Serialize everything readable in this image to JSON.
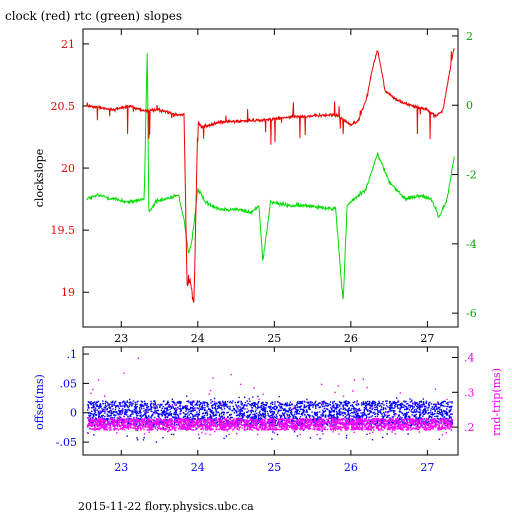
{
  "page_title": "clock (red) rtc (green) slopes",
  "footer": "2015-11-22 flory.physics.ubc.ca",
  "colors": {
    "clock": "#ee0000",
    "rtc": "#00dd00",
    "offset": "#0000ff",
    "rndtrip": "#ff00ff",
    "axis": "#000000"
  },
  "chart_data": [
    {
      "type": "line",
      "title": "clock (red) rtc (green) slopes",
      "xlabel": "",
      "ylabel": "clockslope",
      "y2label": "",
      "xlim": [
        22.5,
        27.4
      ],
      "ylim": [
        18.72,
        21.12
      ],
      "y2lim": [
        -6.4,
        2.2
      ],
      "xticks": [
        23,
        24,
        25,
        26,
        27
      ],
      "yticks": [
        19,
        19.5,
        20,
        20.5,
        21
      ],
      "y2ticks": [
        -6,
        -4,
        -2,
        0,
        2
      ],
      "grid": false,
      "series": [
        {
          "name": "clock",
          "axis": "left",
          "x": [
            22.55,
            22.7,
            22.9,
            23.1,
            23.3,
            23.5,
            23.7,
            23.82,
            23.86,
            23.9,
            23.95,
            24.0,
            24.05,
            24.3,
            24.6,
            24.9,
            25.2,
            25.5,
            25.8,
            26.0,
            26.1,
            26.2,
            26.3,
            26.35,
            26.45,
            26.6,
            26.8,
            27.0,
            27.1,
            27.2,
            27.3,
            27.35
          ],
          "y": [
            20.5,
            20.49,
            20.47,
            20.5,
            20.46,
            20.47,
            20.43,
            20.43,
            19.05,
            19.1,
            18.9,
            20.38,
            20.33,
            20.37,
            20.38,
            20.39,
            20.41,
            20.42,
            20.43,
            20.35,
            20.38,
            20.55,
            20.85,
            20.95,
            20.62,
            20.55,
            20.5,
            20.47,
            20.42,
            20.46,
            20.8,
            20.97
          ]
        },
        {
          "name": "rtc",
          "axis": "right",
          "x": [
            22.55,
            22.7,
            22.9,
            23.1,
            23.3,
            23.34,
            23.36,
            23.45,
            23.6,
            23.75,
            23.82,
            23.88,
            23.92,
            24.0,
            24.1,
            24.3,
            24.5,
            24.7,
            24.8,
            24.85,
            24.95,
            25.2,
            25.5,
            25.8,
            25.9,
            25.95,
            26.05,
            26.2,
            26.35,
            26.5,
            26.7,
            26.9,
            27.05,
            27.15,
            27.25,
            27.35
          ],
          "y": [
            -2.7,
            -2.6,
            -2.7,
            -2.8,
            -2.7,
            1.7,
            -3.1,
            -2.8,
            -2.7,
            -2.6,
            -3.3,
            -4.3,
            -4.0,
            -2.4,
            -2.8,
            -3.0,
            -3.0,
            -3.1,
            -2.9,
            -4.5,
            -2.8,
            -2.9,
            -2.9,
            -3.0,
            -5.7,
            -2.9,
            -2.7,
            -2.4,
            -1.4,
            -2.2,
            -2.7,
            -2.6,
            -2.7,
            -3.2,
            -2.8,
            -1.5
          ]
        }
      ]
    },
    {
      "type": "scatter",
      "xlabel": "",
      "ylabel": "offset(ms)",
      "y2label": "rnd-trip(ms)",
      "xlim": [
        22.5,
        27.4
      ],
      "ylim": [
        -0.072,
        0.112
      ],
      "y2lim": [
        0.12,
        0.43
      ],
      "xticks": [
        23,
        24,
        25,
        26,
        27
      ],
      "yticks": [
        -0.05,
        0,
        0.05,
        0.1
      ],
      "y2ticks": [
        0.2,
        0.3,
        0.4
      ],
      "grid": false,
      "series": [
        {
          "name": "offset",
          "axis": "left",
          "center": 0.0,
          "spread": 0.02,
          "range": [
            -0.05,
            0.03
          ]
        },
        {
          "name": "rnd-trip",
          "axis": "right",
          "center": 0.21,
          "spread": 0.015,
          "range": [
            0.18,
            0.42
          ]
        }
      ]
    }
  ]
}
